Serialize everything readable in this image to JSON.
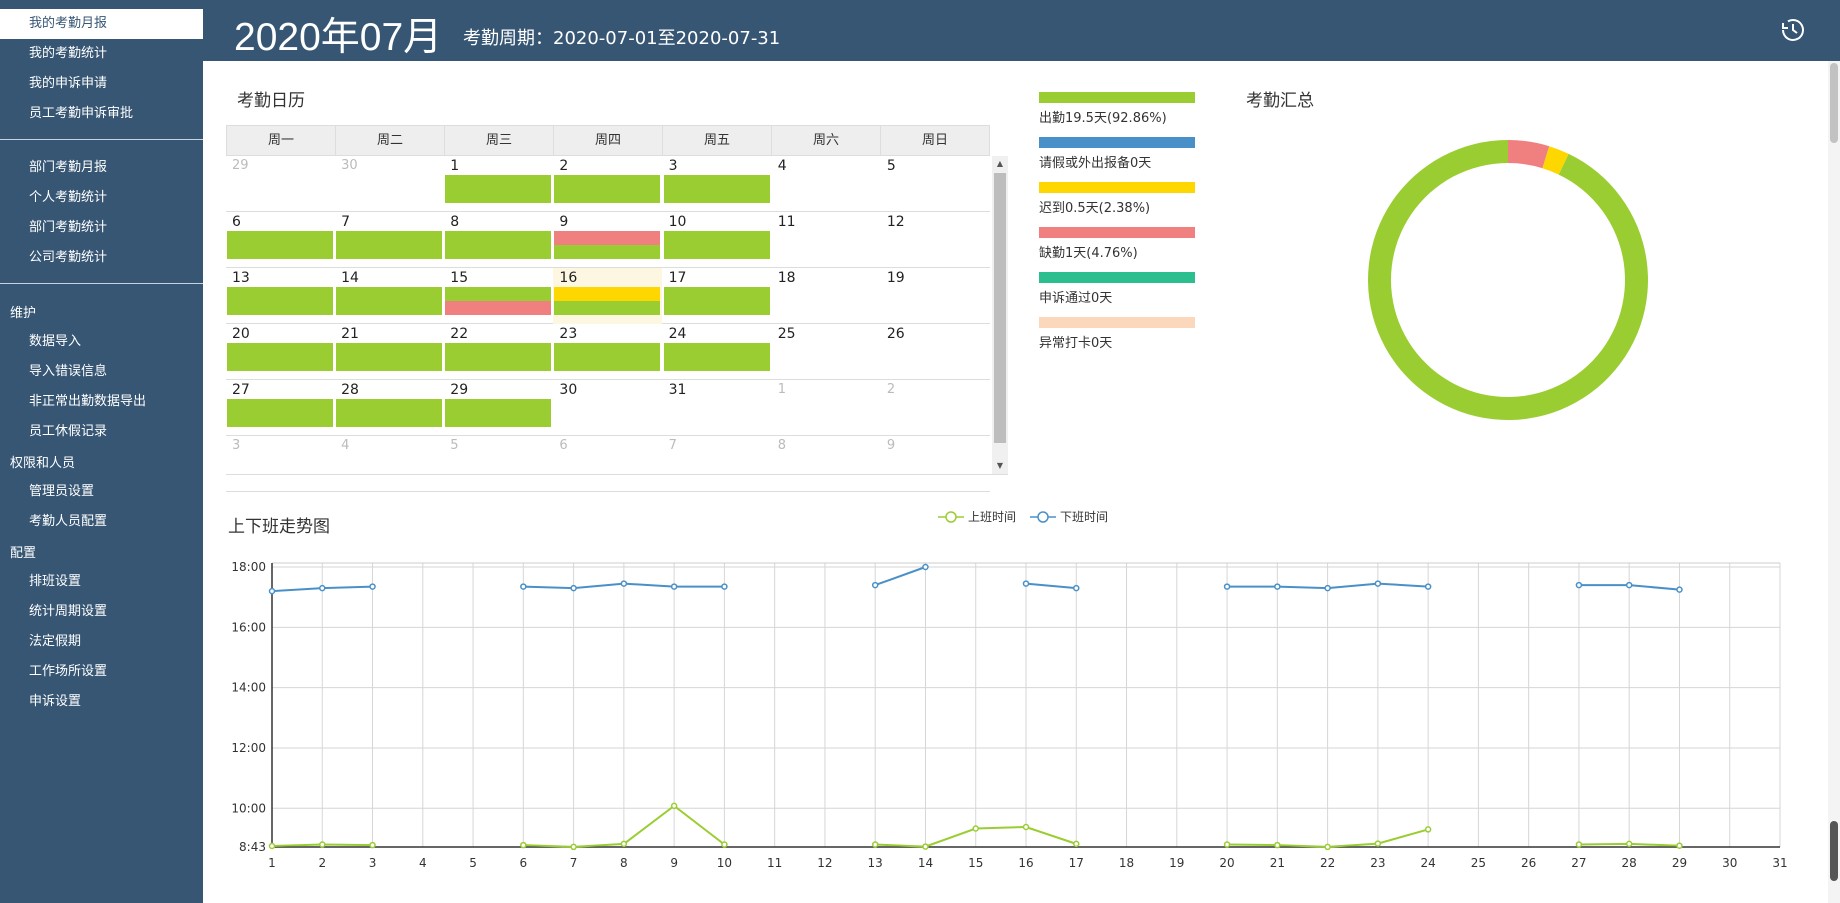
{
  "sidebar": {
    "group1": [
      "我的考勤月报",
      "我的考勤统计",
      "我的申诉申请",
      "员工考勤申诉审批"
    ],
    "group2": [
      "部门考勤月报",
      "个人考勤统计",
      "部门考勤统计",
      "公司考勤统计"
    ],
    "maintain_heading": "维护",
    "maintain": [
      "数据导入",
      "导入错误信息",
      "非正常出勤数据导出",
      "员工休假记录"
    ],
    "perm_heading": "权限和人员",
    "perm": [
      "管理员设置",
      "考勤人员配置"
    ],
    "config_heading": "配置",
    "config": [
      "排班设置",
      "统计周期设置",
      "法定假期",
      "工作场所设置",
      "申诉设置"
    ]
  },
  "header": {
    "title": "2020年07月",
    "period": "考勤周期：2020-07-01至2020-07-31",
    "history_icon": "history-icon"
  },
  "calendar": {
    "title": "考勤日历",
    "weekdays": [
      "周一",
      "周二",
      "周三",
      "周四",
      "周五",
      "周六",
      "周日"
    ],
    "rows": [
      [
        {
          "d": "29",
          "dim": true
        },
        {
          "d": "30",
          "dim": true
        },
        {
          "d": "1",
          "s": [
            "g"
          ]
        },
        {
          "d": "2",
          "s": [
            "g"
          ]
        },
        {
          "d": "3",
          "s": [
            "g"
          ]
        },
        {
          "d": "4"
        },
        {
          "d": "5"
        }
      ],
      [
        {
          "d": "6",
          "s": [
            "g"
          ]
        },
        {
          "d": "7",
          "s": [
            "g"
          ]
        },
        {
          "d": "8",
          "s": [
            "g"
          ]
        },
        {
          "d": "9",
          "s": [
            "r",
            "g"
          ]
        },
        {
          "d": "10",
          "s": [
            "g"
          ]
        },
        {
          "d": "11"
        },
        {
          "d": "12"
        }
      ],
      [
        {
          "d": "13",
          "s": [
            "g"
          ]
        },
        {
          "d": "14",
          "s": [
            "g"
          ]
        },
        {
          "d": "15",
          "s": [
            "g",
            "r"
          ]
        },
        {
          "d": "16",
          "s": [
            "y",
            "g"
          ],
          "today": true
        },
        {
          "d": "17",
          "s": [
            "g"
          ]
        },
        {
          "d": "18"
        },
        {
          "d": "19"
        }
      ],
      [
        {
          "d": "20",
          "s": [
            "g"
          ]
        },
        {
          "d": "21",
          "s": [
            "g"
          ]
        },
        {
          "d": "22",
          "s": [
            "g"
          ]
        },
        {
          "d": "23",
          "s": [
            "g"
          ]
        },
        {
          "d": "24",
          "s": [
            "g"
          ]
        },
        {
          "d": "25"
        },
        {
          "d": "26"
        }
      ],
      [
        {
          "d": "27",
          "s": [
            "g"
          ]
        },
        {
          "d": "28",
          "s": [
            "g"
          ]
        },
        {
          "d": "29",
          "s": [
            "g"
          ]
        },
        {
          "d": "30"
        },
        {
          "d": "31"
        },
        {
          "d": "1",
          "dim": true
        },
        {
          "d": "2",
          "dim": true
        }
      ],
      [
        {
          "d": "3",
          "dim": true
        },
        {
          "d": "4",
          "dim": true
        },
        {
          "d": "5",
          "dim": true
        },
        {
          "d": "6",
          "dim": true
        },
        {
          "d": "7",
          "dim": true
        },
        {
          "d": "8",
          "dim": true
        },
        {
          "d": "9",
          "dim": true
        }
      ]
    ]
  },
  "colors": {
    "g": "#9acd32",
    "r": "#f08080",
    "y": "#ffd700",
    "b": "#4a90c8",
    "teal": "#2bbf8f",
    "peach": "#fbd8bc",
    "line_blue": "#4a90c8",
    "line_green": "#9acd32"
  },
  "legend": [
    {
      "color": "#9acd32",
      "label": "出勤19.5天(92.86%)"
    },
    {
      "color": "#4a90c8",
      "label": "请假或外出报备0天"
    },
    {
      "color": "#ffd700",
      "label": "迟到0.5天(2.38%)"
    },
    {
      "color": "#f08080",
      "label": "缺勤1天(4.76%)"
    },
    {
      "color": "#2bbf8f",
      "label": "申诉通过0天"
    },
    {
      "color": "#fbd8bc",
      "label": "异常打卡0天"
    }
  ],
  "summary": {
    "title": "考勤汇总"
  },
  "donut": {
    "slices": [
      {
        "name": "缺勤",
        "value": 4.76,
        "color": "#f08080"
      },
      {
        "name": "迟到",
        "value": 2.38,
        "color": "#ffd700"
      },
      {
        "name": "出勤",
        "value": 92.86,
        "color": "#9acd32"
      }
    ]
  },
  "trend": {
    "title": "上下班走势图",
    "legend_in": "上班时间",
    "legend_out": "下班时间"
  },
  "chart_data": {
    "type": "line",
    "title": "上下班走势图",
    "x": [
      1,
      2,
      3,
      4,
      5,
      6,
      7,
      8,
      9,
      10,
      11,
      12,
      13,
      14,
      15,
      16,
      17,
      18,
      19,
      20,
      21,
      22,
      23,
      24,
      25,
      26,
      27,
      28,
      29,
      30,
      31
    ],
    "y_ticks": [
      "8:43",
      "10:00",
      "12:00",
      "14:00",
      "16:00",
      "18:00"
    ],
    "ylim": [
      8.7167,
      18.0
    ],
    "series": [
      {
        "name": "下班时间",
        "color": "#4a90c8",
        "values": [
          17.2,
          17.3,
          17.35,
          null,
          null,
          17.35,
          17.3,
          17.45,
          17.35,
          17.35,
          null,
          null,
          17.4,
          18.0,
          null,
          17.45,
          17.3,
          null,
          null,
          17.35,
          17.35,
          17.3,
          17.45,
          17.35,
          null,
          null,
          17.4,
          17.4,
          17.25,
          null,
          null
        ]
      },
      {
        "name": "上班时间",
        "color": "#9acd32",
        "values": [
          8.75,
          8.8,
          8.78,
          null,
          null,
          8.78,
          8.72,
          8.82,
          10.08,
          8.8,
          null,
          null,
          8.8,
          8.73,
          9.33,
          9.38,
          8.82,
          null,
          null,
          8.8,
          8.78,
          8.72,
          8.83,
          9.3,
          null,
          null,
          8.8,
          8.82,
          8.76,
          null,
          null
        ]
      }
    ]
  }
}
